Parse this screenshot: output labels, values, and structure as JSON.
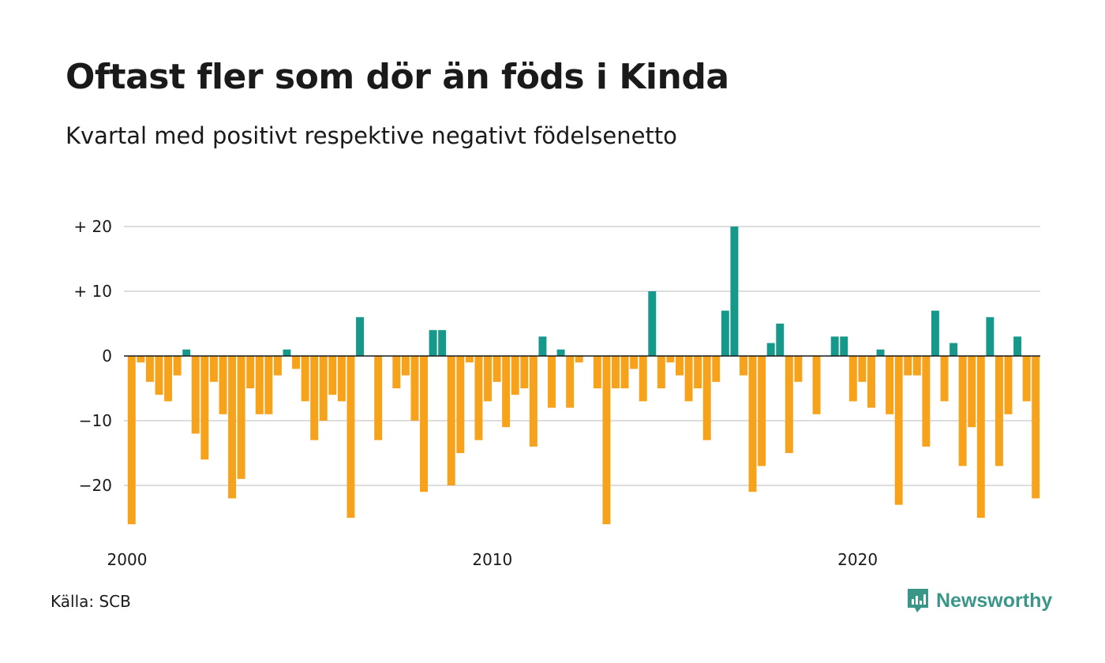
{
  "chart_data": {
    "type": "bar",
    "title": "Oftast fler som dör än föds i Kinda",
    "subtitle": "Kvartal med positivt respektive negativt födelsenetto",
    "x_start_year": 2000,
    "periods_per_year": 4,
    "values": [
      -26,
      -1,
      -4,
      -6,
      -7,
      -3,
      1,
      -12,
      -16,
      -4,
      -9,
      -22,
      -19,
      -5,
      -9,
      -9,
      -3,
      1,
      -2,
      -7,
      -13,
      -10,
      -6,
      -7,
      -25,
      6,
      0,
      -13,
      0,
      -5,
      -3,
      -10,
      -21,
      4,
      4,
      -20,
      -15,
      -1,
      -13,
      -7,
      -4,
      -11,
      -6,
      -5,
      -14,
      3,
      -8,
      1,
      -8,
      -1,
      0,
      -5,
      -26,
      -5,
      -5,
      -2,
      -7,
      10,
      -5,
      -1,
      -3,
      -7,
      -5,
      -13,
      -4,
      7,
      20,
      -3,
      -21,
      -17,
      2,
      5,
      -15,
      -4,
      0,
      -9,
      0,
      3,
      3,
      -7,
      -4,
      -8,
      1,
      -9,
      -23,
      -3,
      -3,
      -14,
      7,
      -7,
      2,
      -17,
      -11,
      -25,
      6,
      -17,
      -9,
      3,
      -7,
      -22
    ],
    "ylim": [
      -27,
      21
    ],
    "yticks": [
      -20,
      -10,
      0,
      10,
      20
    ],
    "ytick_labels": [
      "−20",
      "−10",
      "0",
      "+ 10",
      "+ 20"
    ],
    "xticks": [
      2000,
      2010,
      2020
    ],
    "xtick_labels": [
      "2000",
      "2010",
      "2020"
    ],
    "colors": {
      "positive": "#16998a",
      "negative": "#f7a21b",
      "grid": "#dddddd",
      "zero": "#1a1a1a"
    },
    "grid": true
  },
  "footer": {
    "source": "Källa: SCB",
    "brand": "Newsworthy",
    "brand_icon": "newsworthy-logo-icon"
  }
}
